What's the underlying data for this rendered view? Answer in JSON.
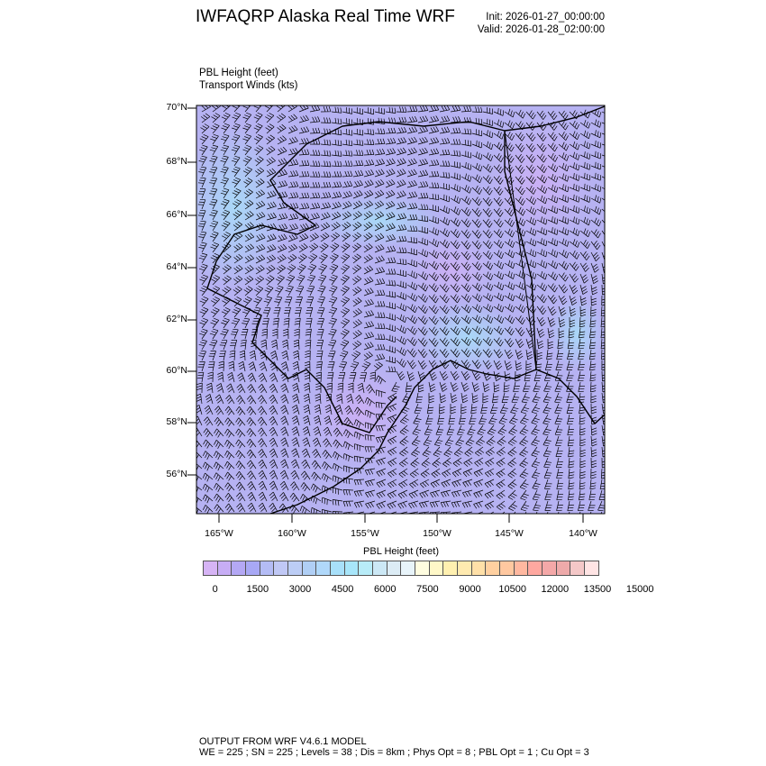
{
  "header": {
    "title": "IWFAQRP Alaska Real Time WRF",
    "init": "Init: 2026-01-27_00:00:00",
    "valid": "Valid: 2026-01-28_02:00:00",
    "subtitle_line1": "PBL Height   (feet)",
    "subtitle_line2": "Transport Winds   (kts)"
  },
  "map": {
    "lat_labels": [
      "70°N",
      "68°N",
      "66°N",
      "64°N",
      "62°N",
      "60°N",
      "58°N",
      "56°N"
    ],
    "lon_labels": [
      "165°W",
      "160°W",
      "155°W",
      "150°W",
      "145°W",
      "140°W"
    ],
    "background_colors": [
      "#b8b0f2",
      "#c4b0f4",
      "#b0c8f6",
      "#a8dcf8"
    ],
    "coastline_color": "#000000"
  },
  "chart_data": {
    "type": "heatmap",
    "title": "PBL Height  (feet)",
    "units": "feet",
    "colorbar": {
      "ticks": [
        "0",
        "1500",
        "3000",
        "4500",
        "6000",
        "7500",
        "9000",
        "10500",
        "12000",
        "13500",
        "15000"
      ],
      "range": [
        0,
        15000
      ],
      "colors": [
        "#d6b4f5",
        "#c7adf5",
        "#b4a8f5",
        "#a8a8f5",
        "#b4bcf5",
        "#c0c8f5",
        "#bccdf5",
        "#b0cff5",
        "#b0d8fa",
        "#a8e0fa",
        "#a8e6fa",
        "#b8ecf8",
        "#cce8f5",
        "#dcecf5",
        "#e8f4fa",
        "#fffde0",
        "#fff8c8",
        "#fff0b0",
        "#ffeab0",
        "#ffe0a8",
        "#ffd0a0",
        "#ffc8a0",
        "#ffb8a0",
        "#ffa8a0",
        "#f4a8a8",
        "#eeaaaa",
        "#f4c8c8",
        "#ffe4e4"
      ]
    }
  },
  "footer": {
    "line1": "OUTPUT FROM WRF V4.6.1 MODEL",
    "line2": "WE = 225 ; SN = 225 ; Levels = 38 ; Dis = 8km ; Phys Opt = 8 ; PBL Opt = 1 ; Cu Opt = 3"
  }
}
